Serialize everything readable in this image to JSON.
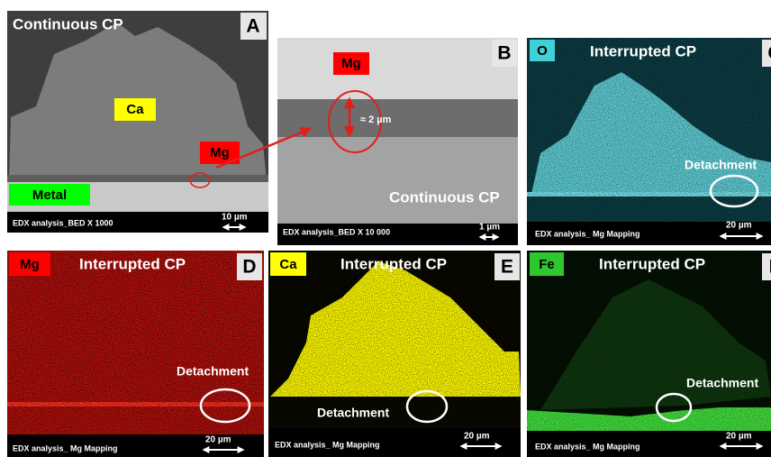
{
  "panels": [
    {
      "letter": "A",
      "title": "Continuous CP",
      "label_ca": "Ca",
      "label_mg": "Mg",
      "label_metal": "Metal",
      "footer": "EDX analysis_BED X 1000",
      "scale": "10 µm"
    },
    {
      "letter": "B",
      "label_mg": "Mg",
      "thickness": "≈ 2 µm",
      "title": "Continuous CP",
      "footer": "EDX analysis_BED X 10 000",
      "scale": "1 µm"
    },
    {
      "letter": "C",
      "element": "O",
      "title": "Interrupted CP",
      "note": "Detachment",
      "footer": "EDX analysis_ Mg Mapping",
      "scale": "20 µm"
    },
    {
      "letter": "D",
      "element": "Mg",
      "title": "Interrupted CP",
      "note": "Detachment",
      "footer": "EDX analysis_ Mg Mapping",
      "scale": "20 µm"
    },
    {
      "letter": "E",
      "element": "Ca",
      "title": "Interrupted CP",
      "note": "Detachment",
      "footer": "EDX analysis_ Mg Mapping",
      "scale": "20 µm"
    },
    {
      "letter": "F",
      "element": "Fe",
      "title": "Interrupted CP",
      "note": "Detachment",
      "footer": "EDX analysis_ Mg Mapping",
      "scale": "20 µm"
    }
  ]
}
